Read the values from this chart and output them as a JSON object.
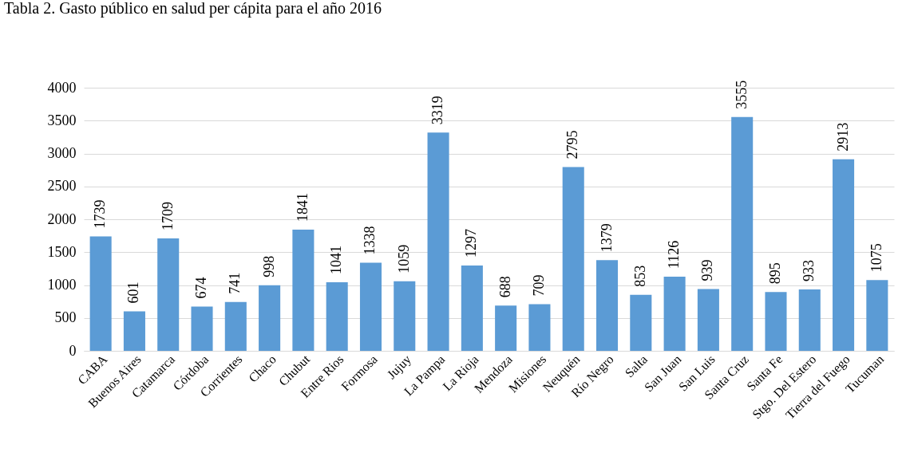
{
  "chart_data": {
    "type": "bar",
    "title": "Tabla 2. Gasto público en salud per cápita para el año 2016",
    "categories": [
      "CABA",
      "Buenos Aires",
      "Catamarca",
      "Córdoba",
      "Corrientes",
      "Chaco",
      "Chubut",
      "Entre Rios",
      "Formosa",
      "Jujuy",
      "La Pampa",
      "La Rioja",
      "Mendoza",
      "Misiones",
      "Neuquén",
      "Río Negro",
      "Salta",
      "San Juan",
      "San Luis",
      "Santa Cruz",
      "Santa Fe",
      "Stgo. Del Estero",
      "Tierra del Fuego",
      "Tucuman"
    ],
    "values": [
      1739,
      601,
      1709,
      674,
      741,
      998,
      1841,
      1041,
      1338,
      1059,
      3319,
      1297,
      688,
      709,
      2795,
      1379,
      853,
      1126,
      939,
      3555,
      895,
      933,
      2913,
      1075
    ],
    "color": "#5b9bd5",
    "ylim": [
      0,
      4000
    ],
    "yticks": [
      0,
      500,
      1000,
      1500,
      2000,
      2500,
      3000,
      3500,
      4000
    ],
    "grid": "y",
    "data_labels": true
  }
}
